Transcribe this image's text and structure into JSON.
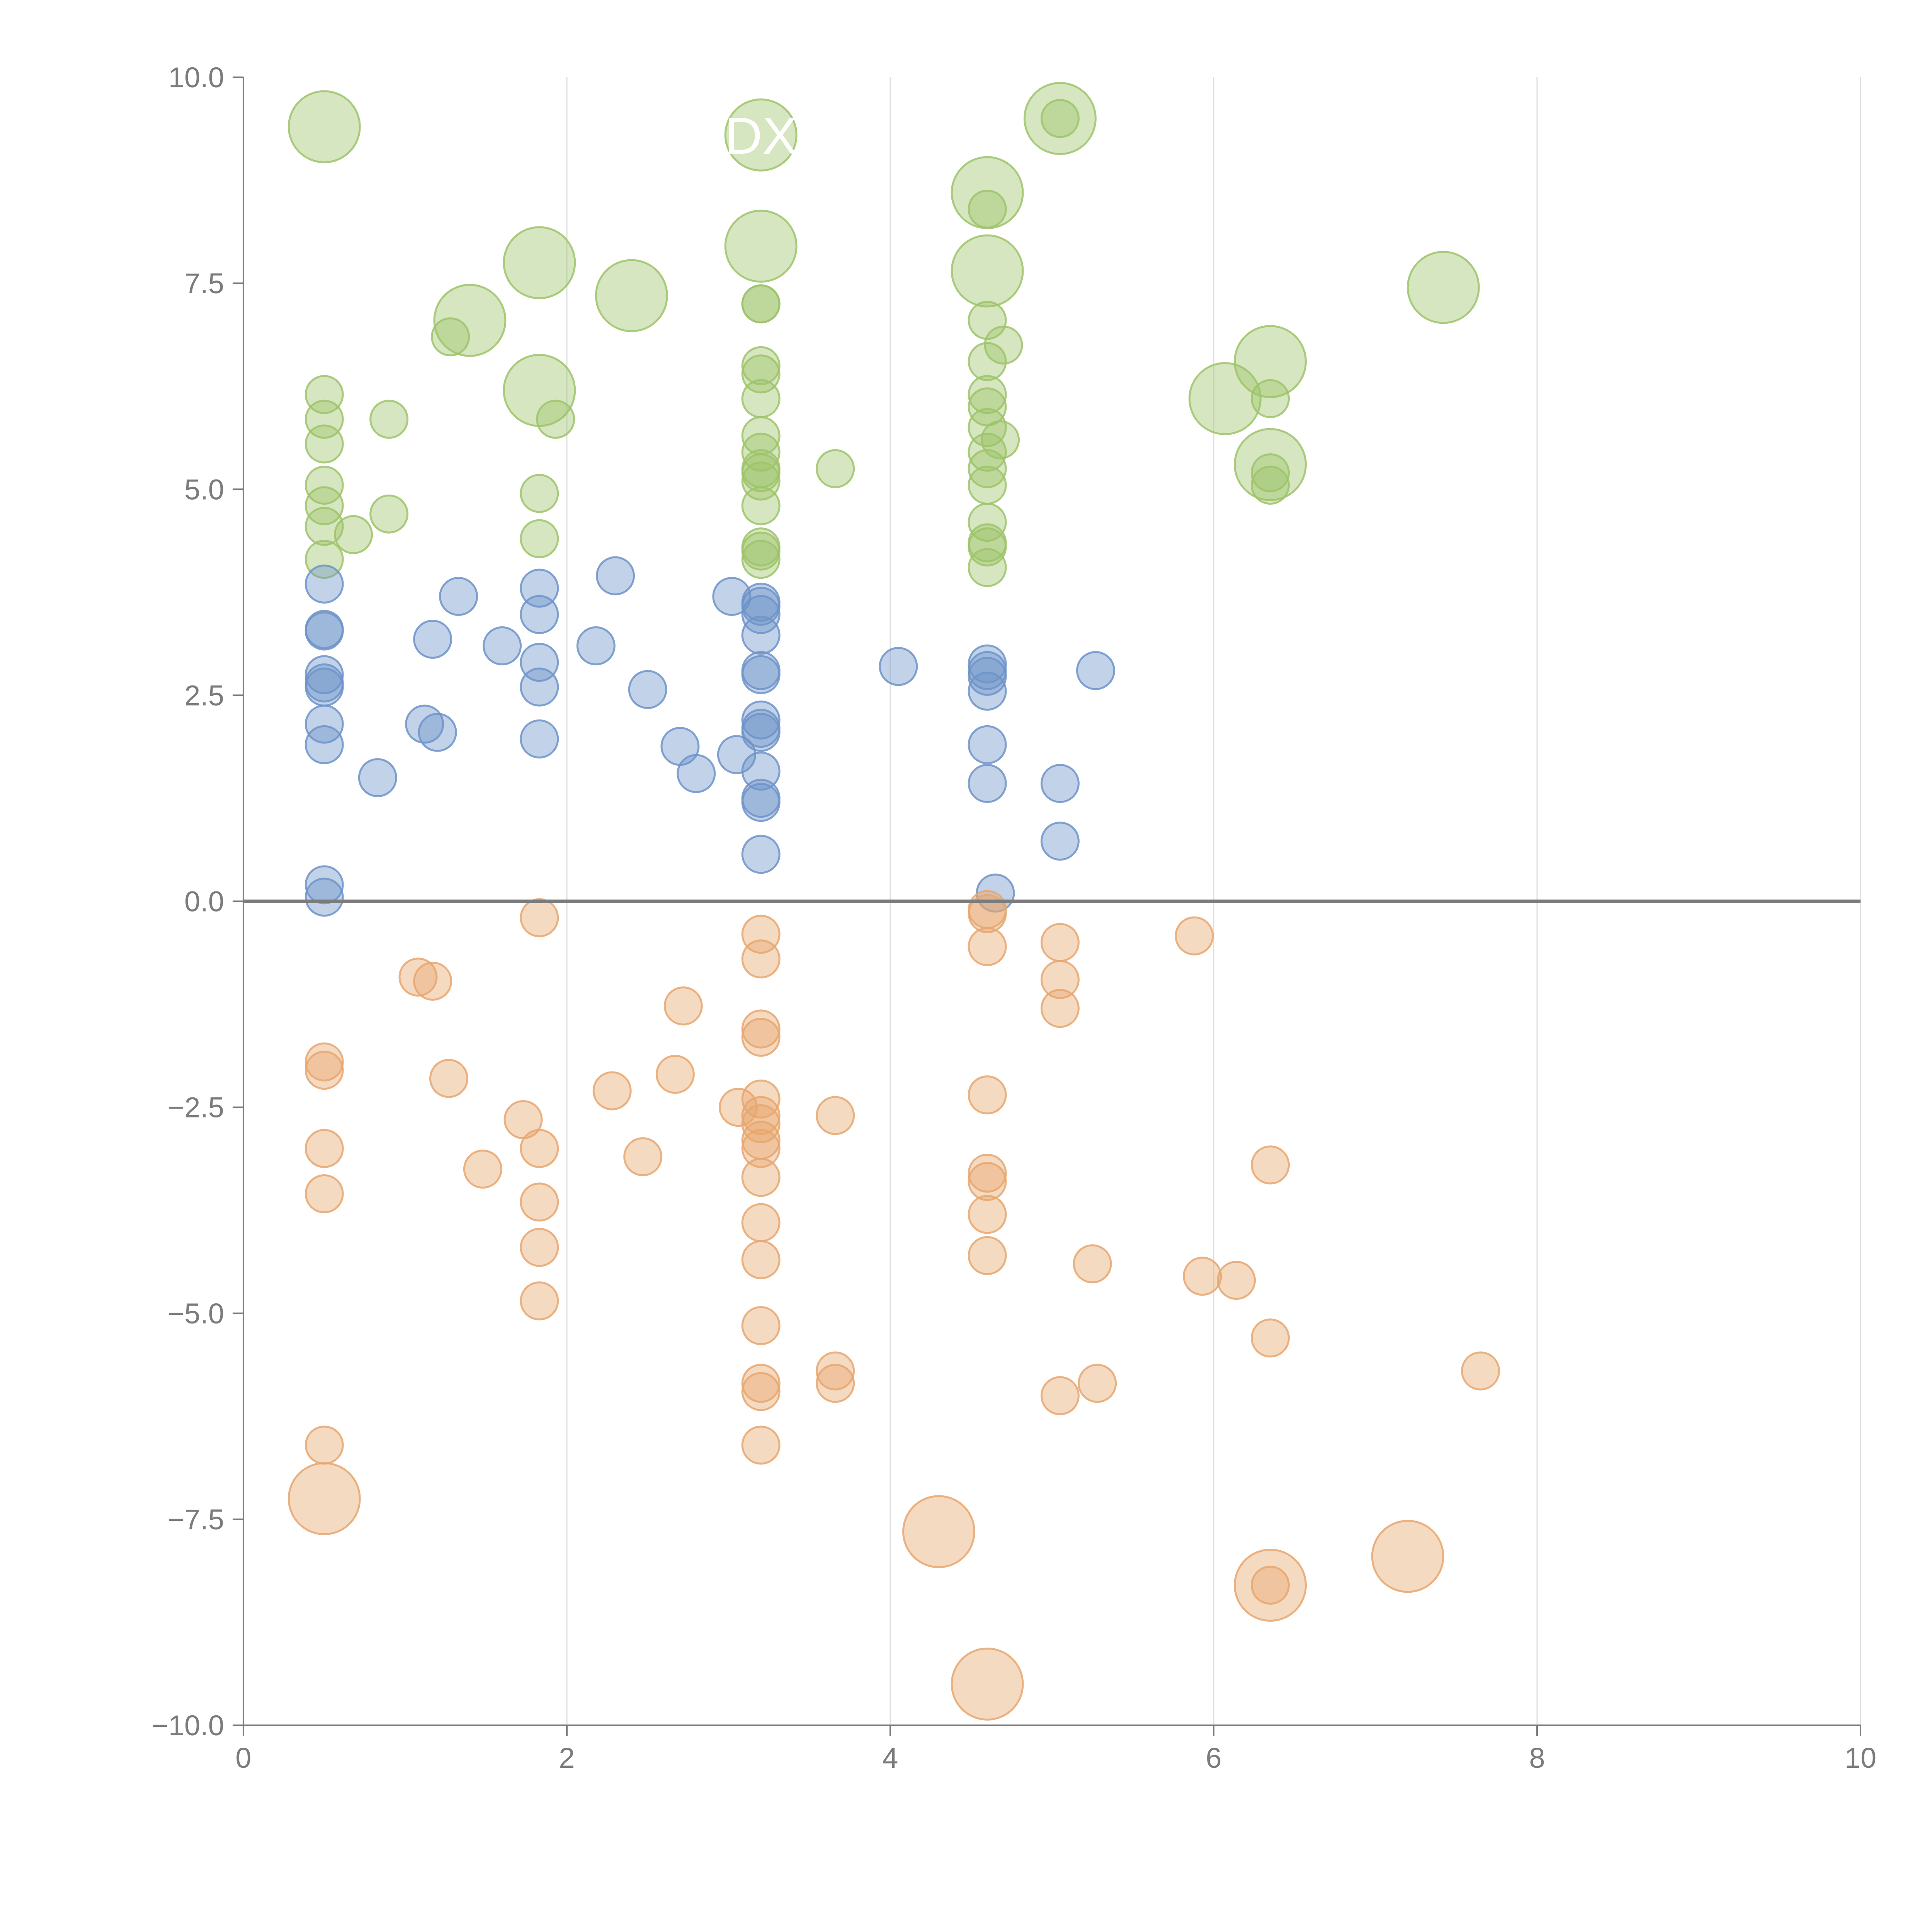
{
  "chart_data": {
    "type": "scatter",
    "title": "",
    "xlabel": "",
    "ylabel": "",
    "xlim": [
      0,
      10
    ],
    "ylim": [
      -10,
      10
    ],
    "x_ticks": [
      0,
      2,
      4,
      6,
      8,
      10
    ],
    "x_tick_labels": [
      "0",
      "2",
      "4",
      "6",
      "8",
      "10"
    ],
    "y_ticks": [
      10,
      7.5,
      5,
      2.5,
      0,
      -2.5,
      -5,
      -7.5,
      -10
    ],
    "y_tick_labels": [
      "10.0",
      "7.5",
      "5.0",
      "2.5",
      "0.0",
      "−2.5",
      "−5.0",
      "−7.5",
      "−10.0"
    ],
    "vertical_grid": true,
    "horizontal_grid": false,
    "zero_line": true,
    "legend": "none",
    "series": [
      {
        "name": "green",
        "color": "#9dc36a",
        "points": [
          [
            0.5,
            9.4,
            2
          ],
          [
            1.4,
            7.05,
            2
          ],
          [
            1.83,
            7.75,
            2
          ],
          [
            1.83,
            6.2,
            2
          ],
          [
            2.4,
            7.35,
            2
          ],
          [
            3.2,
            9.3,
            2
          ],
          [
            3.2,
            7.95,
            2
          ],
          [
            4.6,
            8.6,
            2
          ],
          [
            4.6,
            7.65,
            2
          ],
          [
            5.05,
            9.5,
            2
          ],
          [
            6.07,
            6.1,
            2
          ],
          [
            6.35,
            6.55,
            2
          ],
          [
            6.35,
            5.3,
            2
          ],
          [
            7.42,
            7.45,
            2
          ],
          [
            0.5,
            6.15,
            1
          ],
          [
            0.5,
            5.85,
            1
          ],
          [
            0.5,
            5.55,
            1
          ],
          [
            0.5,
            5.05,
            1
          ],
          [
            0.5,
            4.8,
            1
          ],
          [
            0.5,
            4.55,
            1
          ],
          [
            0.5,
            4.15,
            1
          ],
          [
            0.68,
            4.45,
            1
          ],
          [
            0.9,
            5.85,
            1
          ],
          [
            0.9,
            4.7,
            1
          ],
          [
            1.28,
            6.85,
            1
          ],
          [
            1.83,
            4.95,
            1
          ],
          [
            1.83,
            4.4,
            1
          ],
          [
            1.93,
            5.85,
            1
          ],
          [
            3.2,
            7.25,
            1
          ],
          [
            3.2,
            7.25,
            1
          ],
          [
            3.2,
            6.5,
            1
          ],
          [
            3.2,
            6.4,
            1
          ],
          [
            3.2,
            6.1,
            1
          ],
          [
            3.2,
            5.65,
            1
          ],
          [
            3.2,
            5.45,
            1
          ],
          [
            3.2,
            5.25,
            1
          ],
          [
            3.2,
            5.2,
            1
          ],
          [
            3.2,
            5.1,
            1
          ],
          [
            3.2,
            4.8,
            1
          ],
          [
            3.2,
            4.3,
            1
          ],
          [
            3.2,
            4.25,
            1
          ],
          [
            3.2,
            4.15,
            1
          ],
          [
            3.66,
            5.25,
            1
          ],
          [
            4.6,
            8.4,
            1
          ],
          [
            4.6,
            7.05,
            1
          ],
          [
            4.6,
            6.55,
            1
          ],
          [
            4.6,
            6.15,
            1
          ],
          [
            4.6,
            6.0,
            1
          ],
          [
            4.6,
            5.75,
            1
          ],
          [
            4.6,
            5.45,
            1
          ],
          [
            4.6,
            5.25,
            1
          ],
          [
            4.6,
            5.05,
            1
          ],
          [
            4.6,
            4.6,
            1
          ],
          [
            4.6,
            4.35,
            1
          ],
          [
            4.6,
            4.3,
            1
          ],
          [
            4.6,
            4.05,
            1
          ],
          [
            4.7,
            6.75,
            1
          ],
          [
            4.68,
            5.6,
            1
          ],
          [
            5.05,
            9.5,
            1
          ],
          [
            6.35,
            6.1,
            1
          ],
          [
            6.35,
            5.2,
            1
          ],
          [
            6.35,
            5.05,
            1
          ]
        ]
      },
      {
        "name": "blue",
        "color": "#6d93c9",
        "points": [
          [
            0.5,
            3.85,
            1
          ],
          [
            0.5,
            3.3,
            1
          ],
          [
            0.5,
            3.28,
            1
          ],
          [
            0.5,
            2.75,
            1
          ],
          [
            0.5,
            2.65,
            1
          ],
          [
            0.5,
            2.6,
            1
          ],
          [
            0.5,
            2.15,
            1
          ],
          [
            0.5,
            1.9,
            1
          ],
          [
            0.5,
            0.2,
            1
          ],
          [
            0.5,
            0.05,
            1
          ],
          [
            0.83,
            1.5,
            1
          ],
          [
            1.12,
            2.15,
            1
          ],
          [
            1.17,
            3.18,
            1
          ],
          [
            1.2,
            2.05,
            1
          ],
          [
            1.33,
            3.7,
            1
          ],
          [
            1.6,
            3.1,
            1
          ],
          [
            1.83,
            3.8,
            1
          ],
          [
            1.83,
            3.48,
            1
          ],
          [
            1.83,
            2.9,
            1
          ],
          [
            1.83,
            2.6,
            1
          ],
          [
            1.83,
            1.97,
            1
          ],
          [
            2.18,
            3.1,
            1
          ],
          [
            2.3,
            3.95,
            1
          ],
          [
            2.5,
            2.57,
            1
          ],
          [
            2.7,
            1.88,
            1
          ],
          [
            2.8,
            1.55,
            1
          ],
          [
            3.02,
            3.7,
            1
          ],
          [
            3.05,
            1.78,
            1
          ],
          [
            3.2,
            3.63,
            1
          ],
          [
            3.2,
            3.58,
            1
          ],
          [
            3.2,
            3.48,
            1
          ],
          [
            3.2,
            3.23,
            1
          ],
          [
            3.2,
            2.8,
            1
          ],
          [
            3.2,
            2.75,
            1
          ],
          [
            3.2,
            2.2,
            1
          ],
          [
            3.2,
            2.1,
            1
          ],
          [
            3.2,
            2.05,
            1
          ],
          [
            3.2,
            1.58,
            1
          ],
          [
            3.2,
            1.25,
            1
          ],
          [
            3.2,
            1.2,
            1
          ],
          [
            3.2,
            0.57,
            1
          ],
          [
            4.05,
            2.85,
            1
          ],
          [
            4.6,
            2.88,
            1
          ],
          [
            4.6,
            2.8,
            1
          ],
          [
            4.6,
            2.73,
            1
          ],
          [
            4.6,
            2.55,
            1
          ],
          [
            4.6,
            1.9,
            1
          ],
          [
            4.6,
            1.43,
            1
          ],
          [
            4.65,
            0.1,
            1
          ],
          [
            5.05,
            1.43,
            1
          ],
          [
            5.05,
            0.73,
            1
          ],
          [
            5.27,
            2.8,
            1
          ]
        ]
      },
      {
        "name": "orange",
        "color": "#e8a66e",
        "points": [
          [
            0.5,
            -7.25,
            2
          ],
          [
            4.3,
            -7.65,
            2
          ],
          [
            4.6,
            -9.5,
            2
          ],
          [
            6.35,
            -8.3,
            2
          ],
          [
            7.2,
            -7.95,
            2
          ],
          [
            0.5,
            -1.95,
            1
          ],
          [
            0.5,
            -2.05,
            1
          ],
          [
            0.5,
            -3.0,
            1
          ],
          [
            0.5,
            -3.55,
            1
          ],
          [
            0.5,
            -6.6,
            1
          ],
          [
            1.08,
            -0.92,
            1
          ],
          [
            1.17,
            -0.97,
            1
          ],
          [
            1.27,
            -2.15,
            1
          ],
          [
            1.48,
            -3.25,
            1
          ],
          [
            1.73,
            -2.65,
            1
          ],
          [
            1.83,
            -0.2,
            1
          ],
          [
            1.83,
            -3.0,
            1
          ],
          [
            1.83,
            -3.65,
            1
          ],
          [
            1.83,
            -4.2,
            1
          ],
          [
            1.83,
            -4.85,
            1
          ],
          [
            2.28,
            -2.3,
            1
          ],
          [
            2.47,
            -3.1,
            1
          ],
          [
            2.67,
            -2.1,
            1
          ],
          [
            2.72,
            -1.27,
            1
          ],
          [
            3.06,
            -2.5,
            1
          ],
          [
            3.2,
            -0.4,
            1
          ],
          [
            3.2,
            -0.7,
            1
          ],
          [
            3.2,
            -1.55,
            1
          ],
          [
            3.2,
            -1.65,
            1
          ],
          [
            3.2,
            -2.4,
            1
          ],
          [
            3.2,
            -2.6,
            1
          ],
          [
            3.2,
            -2.7,
            1
          ],
          [
            3.2,
            -2.9,
            1
          ],
          [
            3.2,
            -3.0,
            1
          ],
          [
            3.2,
            -3.35,
            1
          ],
          [
            3.2,
            -3.9,
            1
          ],
          [
            3.2,
            -4.35,
            1
          ],
          [
            3.2,
            -5.15,
            1
          ],
          [
            3.2,
            -5.85,
            1
          ],
          [
            3.2,
            -5.95,
            1
          ],
          [
            3.2,
            -6.6,
            1
          ],
          [
            3.66,
            -2.6,
            1
          ],
          [
            3.66,
            -5.7,
            1
          ],
          [
            3.66,
            -5.85,
            1
          ],
          [
            4.6,
            -0.1,
            1
          ],
          [
            4.6,
            -0.15,
            1
          ],
          [
            4.6,
            -0.55,
            1
          ],
          [
            4.6,
            -2.35,
            1
          ],
          [
            4.6,
            -3.3,
            1
          ],
          [
            4.6,
            -3.4,
            1
          ],
          [
            4.6,
            -3.8,
            1
          ],
          [
            4.6,
            -4.3,
            1
          ],
          [
            5.05,
            -0.5,
            1
          ],
          [
            5.05,
            -0.95,
            1
          ],
          [
            5.05,
            -1.3,
            1
          ],
          [
            5.05,
            -6.0,
            1
          ],
          [
            5.25,
            -4.4,
            1
          ],
          [
            5.28,
            -5.85,
            1
          ],
          [
            5.88,
            -0.42,
            1
          ],
          [
            5.93,
            -4.55,
            1
          ],
          [
            6.14,
            -4.6,
            1
          ],
          [
            6.35,
            -3.2,
            1
          ],
          [
            6.35,
            -5.3,
            1
          ],
          [
            6.35,
            -8.3,
            1
          ],
          [
            7.65,
            -5.7,
            1
          ]
        ]
      }
    ],
    "annotations": [
      {
        "text": "DX",
        "x": 3.2,
        "y": 9.3,
        "size": "large"
      }
    ]
  }
}
